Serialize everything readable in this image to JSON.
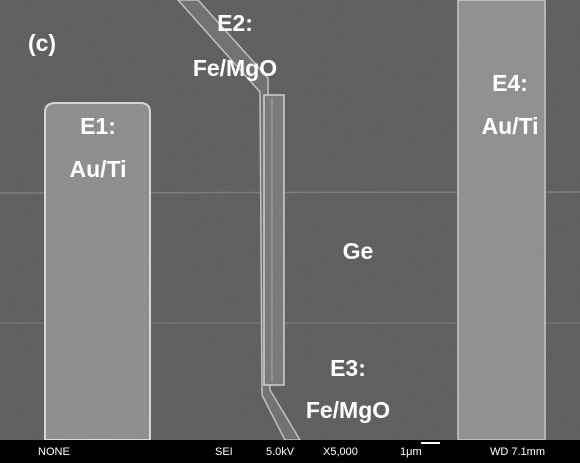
{
  "panel_label": "(c)",
  "labels": [
    {
      "name": "E2:",
      "material": "Fe/MgO"
    },
    {
      "name": "E1:",
      "material": "Au/Ti"
    },
    {
      "name": "E4:",
      "material": "Au/Ti"
    },
    {
      "name": "E3:",
      "material": "Fe/MgO"
    }
  ],
  "substrate": "Ge",
  "info_bar": [
    "NONE",
    "SEI",
    "5.0kV",
    "X5,000",
    "1μm",
    "WD 7.1mm"
  ]
}
